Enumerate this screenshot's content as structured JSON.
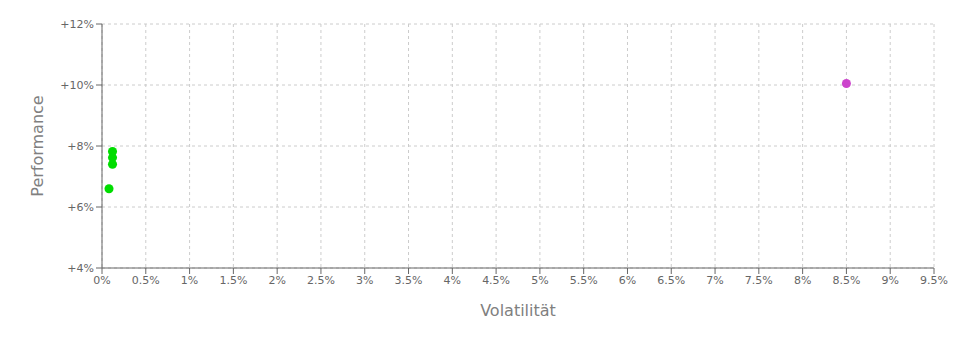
{
  "chart_data": {
    "type": "scatter",
    "xlabel": "Volatilität",
    "ylabel": "Performance",
    "xlim": [
      0,
      9.5
    ],
    "ylim": [
      4,
      12
    ],
    "xticks": [
      {
        "value": 0,
        "label": "0%"
      },
      {
        "value": 0.5,
        "label": "0.5%"
      },
      {
        "value": 1.0,
        "label": "1%"
      },
      {
        "value": 1.5,
        "label": "1.5%"
      },
      {
        "value": 2.0,
        "label": "2%"
      },
      {
        "value": 2.5,
        "label": "2.5%"
      },
      {
        "value": 3.0,
        "label": "3%"
      },
      {
        "value": 3.5,
        "label": "3.5%"
      },
      {
        "value": 4.0,
        "label": "4%"
      },
      {
        "value": 4.5,
        "label": "4.5%"
      },
      {
        "value": 5.0,
        "label": "5%"
      },
      {
        "value": 5.5,
        "label": "5.5%"
      },
      {
        "value": 6.0,
        "label": "6%"
      },
      {
        "value": 6.5,
        "label": "6.5%"
      },
      {
        "value": 7.0,
        "label": "7%"
      },
      {
        "value": 7.5,
        "label": "7.5%"
      },
      {
        "value": 8.0,
        "label": "8%"
      },
      {
        "value": 8.5,
        "label": "8.5%"
      },
      {
        "value": 9.0,
        "label": "9%"
      },
      {
        "value": 9.5,
        "label": "9.5%"
      }
    ],
    "yticks": [
      {
        "value": 4,
        "label": "+4%"
      },
      {
        "value": 6,
        "label": "+6%"
      },
      {
        "value": 8,
        "label": "+8%"
      },
      {
        "value": 10,
        "label": "+10%"
      },
      {
        "value": 12,
        "label": "+12%"
      }
    ],
    "grid": true,
    "series": [
      {
        "color": "#00dd00",
        "marker": "circle",
        "x": [
          0.12,
          0.12,
          0.12,
          0.08
        ],
        "y": [
          7.82,
          7.62,
          7.4,
          6.6
        ]
      },
      {
        "color": "#cc44cc",
        "marker": "circle",
        "x": [
          8.5
        ],
        "y": [
          10.05
        ]
      }
    ]
  }
}
